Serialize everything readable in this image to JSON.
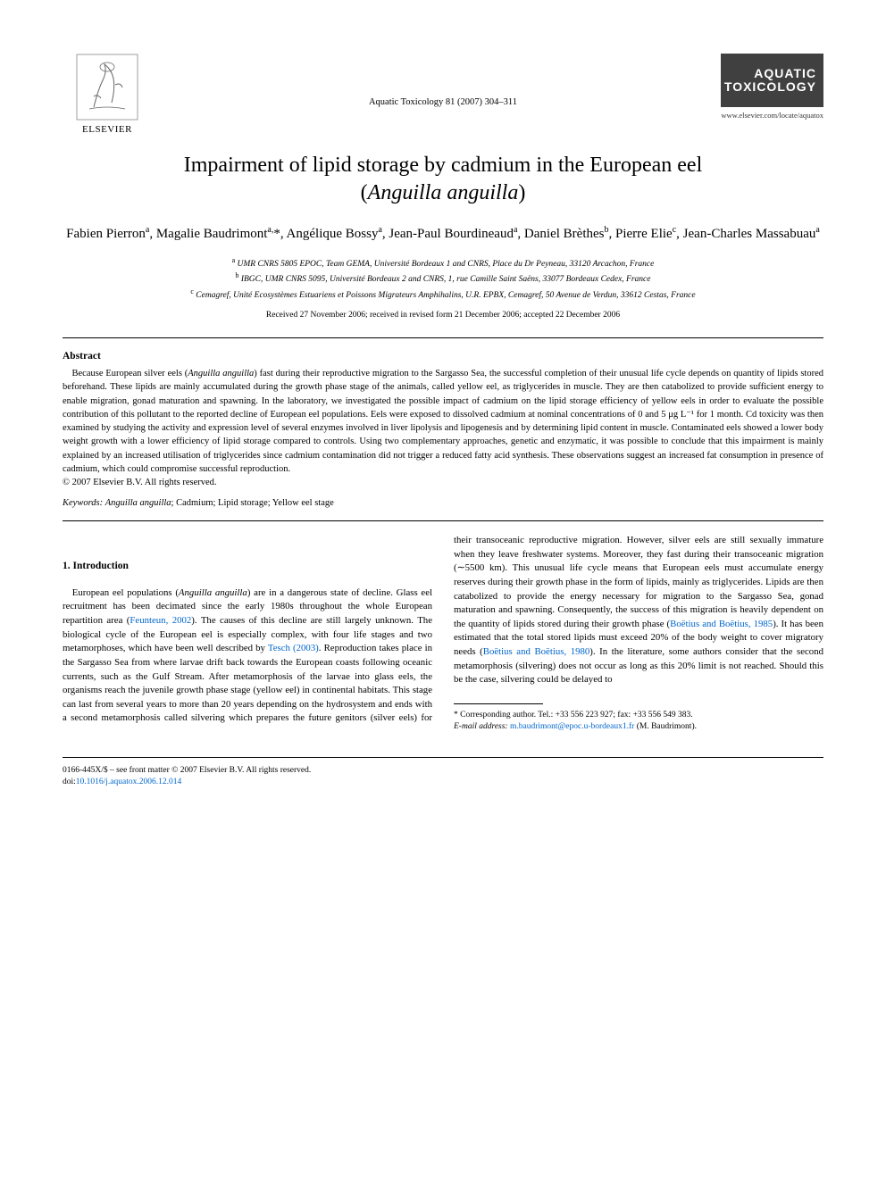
{
  "publisher": {
    "name": "ELSEVIER"
  },
  "journal": {
    "title_line1": "AQUATIC",
    "title_line2": "TOXICOLOGY",
    "url": "www.elsevier.com/locate/aquatox"
  },
  "citation": "Aquatic Toxicology 81 (2007) 304–311",
  "title_line1": "Impairment of lipid storage by cadmium in the European eel",
  "title_line2_prefix": "(",
  "title_line2_species": "Anguilla anguilla",
  "title_line2_suffix": ")",
  "authors_html": "Fabien Pierron<sup>a</sup>, Magalie Baudrimont<sup>a,</sup>*, Angélique Bossy<sup>a</sup>, Jean-Paul Bourdineaud<sup>a</sup>, Daniel Brèthes<sup>b</sup>, Pierre Elie<sup>c</sup>, Jean-Charles Massabuau<sup>a</sup>",
  "affiliations": [
    {
      "sup": "a",
      "text": "UMR CNRS 5805 EPOC, Team GEMA, Université Bordeaux 1 and CNRS, Place du Dr Peyneau, 33120 Arcachon, France"
    },
    {
      "sup": "b",
      "text": "IBGC, UMR CNRS 5095, Université Bordeaux 2 and CNRS, 1, rue Camille Saint Saëns, 33077 Bordeaux Cedex, France"
    },
    {
      "sup": "c",
      "text": "Cemagref, Unité Ecosystèmes Estuariens et Poissons Migrateurs Amphihalins, U.R. EPBX, Cemagref, 50 Avenue de Verdun, 33612 Cestas, France"
    }
  ],
  "dates": "Received 27 November 2006; received in revised form 21 December 2006; accepted 22 December 2006",
  "abstract": {
    "heading": "Abstract",
    "text": "Because European silver eels (Anguilla anguilla) fast during their reproductive migration to the Sargasso Sea, the successful completion of their unusual life cycle depends on quantity of lipids stored beforehand. These lipids are mainly accumulated during the growth phase stage of the animals, called yellow eel, as triglycerides in muscle. They are then catabolized to provide sufficient energy to enable migration, gonad maturation and spawning. In the laboratory, we investigated the possible impact of cadmium on the lipid storage efficiency of yellow eels in order to evaluate the possible contribution of this pollutant to the reported decline of European eel populations. Eels were exposed to dissolved cadmium at nominal concentrations of 0 and 5 μg L⁻¹ for 1 month. Cd toxicity was then examined by studying the activity and expression level of several enzymes involved in liver lipolysis and lipogenesis and by determining lipid content in muscle. Contaminated eels showed a lower body weight growth with a lower efficiency of lipid storage compared to controls. Using two complementary approaches, genetic and enzymatic, it was possible to conclude that this impairment is mainly explained by an increased utilisation of triglycerides since cadmium contamination did not trigger a reduced fatty acid synthesis. These observations suggest an increased fat consumption in presence of cadmium, which could compromise successful reproduction.",
    "copyright": "© 2007 Elsevier B.V. All rights reserved."
  },
  "keywords": {
    "label": "Keywords:",
    "text": "Anguilla anguilla; Cadmium; Lipid storage; Yellow eel stage"
  },
  "intro": {
    "heading": "1. Introduction",
    "para1_pre": "European eel populations (",
    "para1_species": "Anguilla anguilla",
    "para1_mid": ") are in a dangerous state of decline. Glass eel recruitment has been decimated since the early 1980s throughout the whole European repartition area (",
    "para1_ref1": "Feunteun, 2002",
    "para1_mid2": "). The causes of this decline are still largely unknown. The biological cycle of the European eel is especially complex, with four life stages and two metamorphoses, which have been well described by ",
    "para1_ref2": "Tesch (2003)",
    "para1_mid3": ". Reproduction takes place in the Sargasso Sea from where larvae drift back towards the European coasts following oceanic currents, such as the Gulf Stream. After metamorphosis of the larvae into glass eels, the organisms reach the juvenile growth phase stage (yellow eel) in continental habitats. This stage can last from several years to more than 20 years depending on the hydrosystem and ends with a second metamorphosis called silvering which prepares the future genitors (silver eels) for their transoceanic reproductive migration. However, silver eels are still sexually immature when they leave freshwater systems. Moreover, they fast during their transoceanic migration (∼5500 km). This unusual life cycle means that European eels must accumulate energy reserves during their growth phase in the form of lipids, mainly as triglycerides. Lipids are then catabolized to provide the energy necessary for migration to the Sargasso Sea, gonad maturation and spawning. Consequently, the success of this migration is heavily dependent on the quantity of lipids stored during their growth phase (",
    "para1_ref3": "Boëtius and Boëtius, 1985",
    "para1_mid4": "). It has been estimated that the total stored lipids must exceed 20% of the body weight to cover migratory needs (",
    "para1_ref4": "Boëtius and Boëtius, 1980",
    "para1_end": "). In the literature, some authors consider that the second metamorphosis (silvering) does not occur as long as this 20% limit is not reached. Should this be the case, silvering could be delayed to"
  },
  "footnote": {
    "corr": "* Corresponding author. Tel.: +33 556 223 927; fax: +33 556 549 383.",
    "email_label": "E-mail address:",
    "email": "m.baudrimont@epoc.u-bordeaux1.fr",
    "email_suffix": "(M. Baudrimont)."
  },
  "footer": {
    "line1": "0166-445X/$ – see front matter © 2007 Elsevier B.V. All rights reserved.",
    "doi_label": "doi:",
    "doi": "10.1016/j.aquatox.2006.12.014"
  },
  "colors": {
    "link": "#0066cc",
    "journal_bg": "#404040",
    "text": "#000000",
    "background": "#ffffff"
  }
}
